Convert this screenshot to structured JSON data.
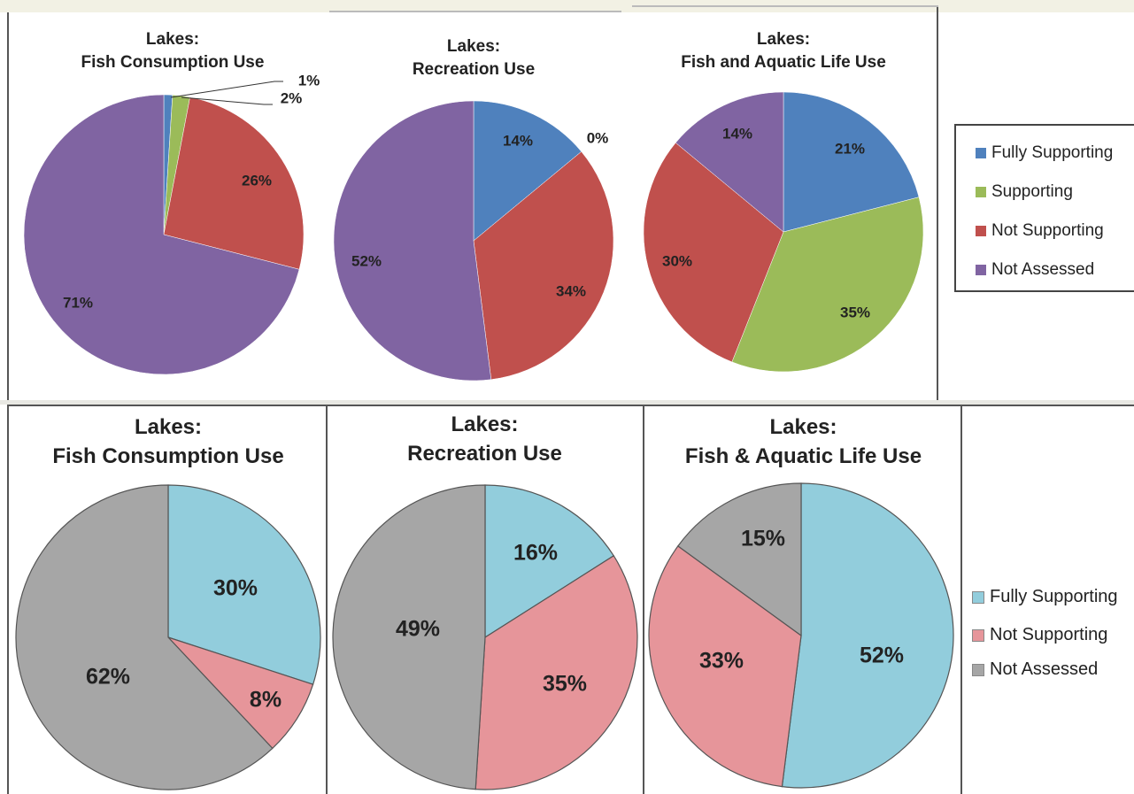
{
  "colors": {
    "fully_supporting_top": "#4f81bd",
    "supporting_top": "#9bbb59",
    "not_supporting_top": "#c0504d",
    "not_assessed_top": "#8064a2",
    "fully_supporting_bottom": "#92cddc",
    "not_supporting_bottom": "#e6959a",
    "not_assessed_bottom": "#a6a6a6"
  },
  "chart_data": [
    {
      "type": "pie",
      "title_line1": "Lakes:",
      "title_line2": "Fish Consumption Use",
      "categories": [
        "Fully Supporting",
        "Supporting",
        "Not Supporting",
        "Not Assessed"
      ],
      "values": [
        1,
        2,
        26,
        71
      ],
      "labels": [
        "1%",
        "2%",
        "26%",
        "71%"
      ]
    },
    {
      "type": "pie",
      "title_line1": "Lakes:",
      "title_line2": "Recreation Use",
      "categories": [
        "Fully Supporting",
        "Supporting",
        "Not Supporting",
        "Not Assessed"
      ],
      "values": [
        14,
        0,
        34,
        52
      ],
      "labels": [
        "14%",
        "0%",
        "34%",
        "52%"
      ]
    },
    {
      "type": "pie",
      "title_line1": "Lakes:",
      "title_line2": "Fish and Aquatic Life Use",
      "categories": [
        "Fully Supporting",
        "Supporting",
        "Not Supporting",
        "Not Assessed"
      ],
      "values": [
        21,
        35,
        30,
        14
      ],
      "labels": [
        "21%",
        "35%",
        "30%",
        "14%"
      ]
    },
    {
      "type": "pie",
      "title_line1": "Lakes:",
      "title_line2": "Fish Consumption Use",
      "categories": [
        "Fully Supporting",
        "Not Supporting",
        "Not Assessed"
      ],
      "values": [
        30,
        8,
        62
      ],
      "labels": [
        "30%",
        "8%",
        "62%"
      ]
    },
    {
      "type": "pie",
      "title_line1": "Lakes:",
      "title_line2": "Recreation Use",
      "categories": [
        "Fully Supporting",
        "Not Supporting",
        "Not Assessed"
      ],
      "values": [
        16,
        35,
        49
      ],
      "labels": [
        "16%",
        "35%",
        "49%"
      ]
    },
    {
      "type": "pie",
      "title_line1": "Lakes:",
      "title_line2": "Fish & Aquatic Life Use",
      "categories": [
        "Fully Supporting",
        "Not Supporting",
        "Not Assessed"
      ],
      "values": [
        52,
        33,
        15
      ],
      "labels": [
        "52%",
        "33%",
        "15%"
      ]
    }
  ],
  "legend_top": [
    "Fully Supporting",
    "Supporting",
    "Not Supporting",
    "Not Assessed"
  ],
  "legend_bottom": [
    "Fully Supporting",
    "Not Supporting",
    "Not Assessed"
  ]
}
